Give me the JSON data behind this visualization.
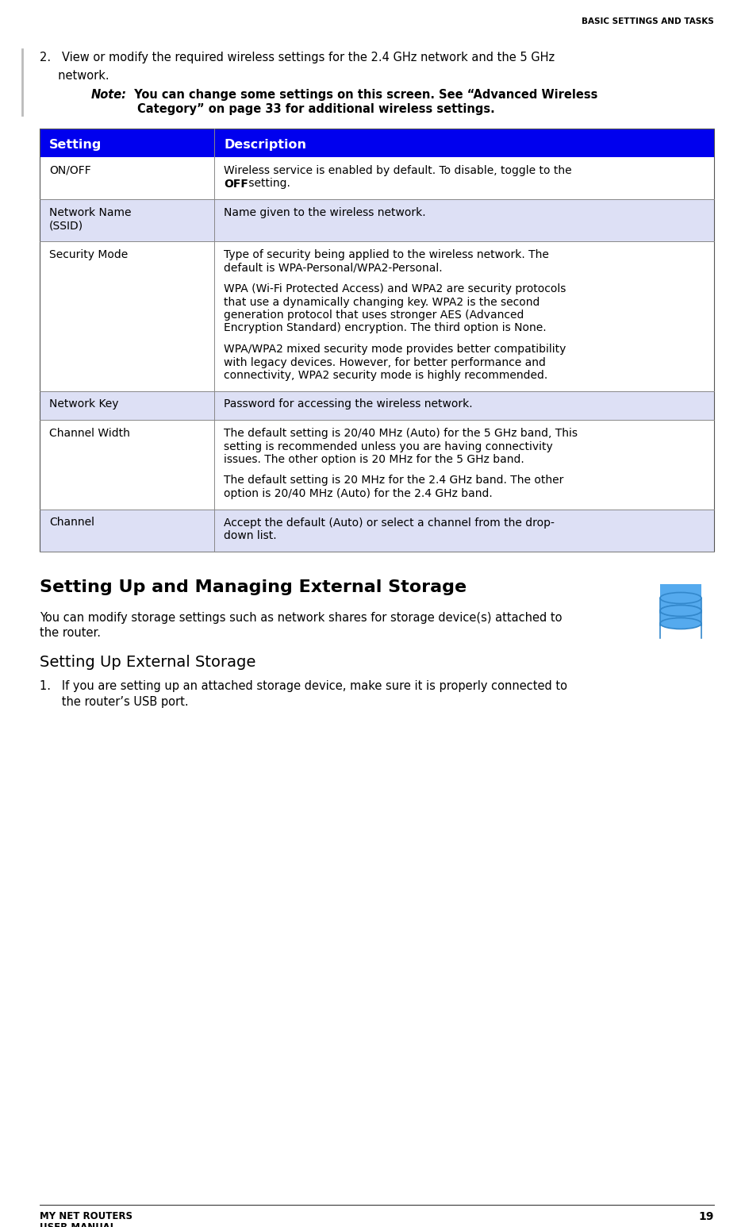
{
  "header_text": "BASIC SETTINGS AND TASKS",
  "page_number": "19",
  "footer_left_line1": "MY NET ROUTERS",
  "footer_left_line2": "USER MANUAL",
  "table_header_bg": "#0000ee",
  "table_header_text_color": "#ffffff",
  "table_alt_row_bg": "#dde0f5",
  "table_white_row_bg": "#ffffff",
  "table_col1_header": "Setting",
  "table_col2_header": "Description",
  "section_title": "Setting Up and Managing External Storage",
  "section_body_lines": [
    "You can modify storage settings such as network shares for storage device(s) attached to",
    "the router."
  ],
  "subsection_title": "Setting Up External Storage",
  "step1_lines": [
    "1.   If you are setting up an attached storage device, make sure it is properly connected to",
    "      the router’s USB port."
  ],
  "icon_color": "#55aaee",
  "icon_outline": "#3388cc",
  "bg_color": "#ffffff",
  "text_color": "#000000",
  "left_bar_color": "#bbbbbb"
}
